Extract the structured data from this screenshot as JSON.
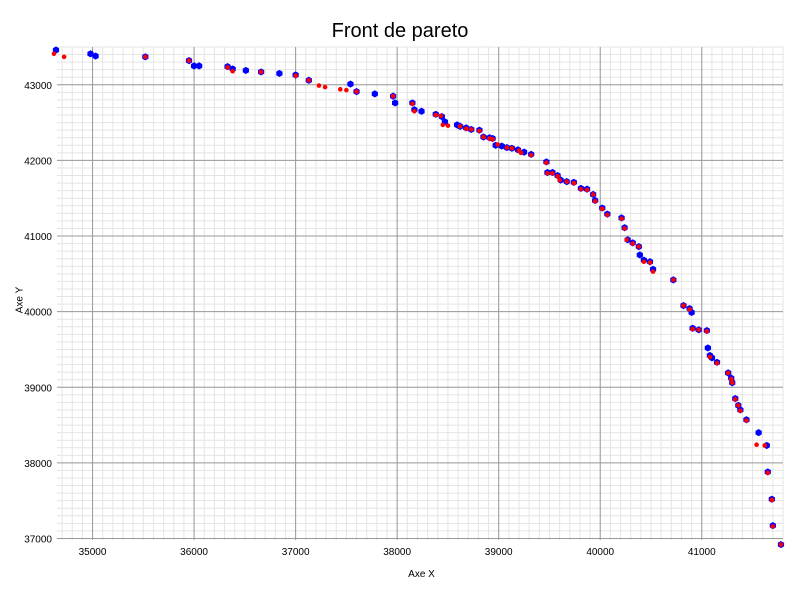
{
  "chart_data": {
    "type": "scatter",
    "title": "Front de pareto",
    "xlabel": "Axe X",
    "ylabel": "Axe Y",
    "xlim": [
      34650,
      41800
    ],
    "ylim": [
      36980,
      43500
    ],
    "x_ticks": [
      35000,
      36000,
      37000,
      38000,
      39000,
      40000,
      41000
    ],
    "y_ticks": [
      37000,
      38000,
      39000,
      40000,
      41000,
      42000,
      43000
    ],
    "grid": true,
    "series": [
      {
        "color": "#0000ff",
        "marker": "hexagon",
        "points": [
          [
            34640,
            43460
          ],
          [
            34980,
            43410
          ],
          [
            35030,
            43380
          ],
          [
            35520,
            43370
          ],
          [
            35950,
            43320
          ],
          [
            36000,
            43250
          ],
          [
            36050,
            43250
          ],
          [
            36330,
            43240
          ],
          [
            36380,
            43210
          ],
          [
            36510,
            43190
          ],
          [
            36660,
            43170
          ],
          [
            36840,
            43150
          ],
          [
            37000,
            43130
          ],
          [
            37130,
            43060
          ],
          [
            37540,
            43010
          ],
          [
            37600,
            42910
          ],
          [
            37780,
            42880
          ],
          [
            37960,
            42850
          ],
          [
            37980,
            42760
          ],
          [
            38150,
            42760
          ],
          [
            38170,
            42670
          ],
          [
            38240,
            42650
          ],
          [
            38380,
            42610
          ],
          [
            38440,
            42580
          ],
          [
            38470,
            42510
          ],
          [
            38590,
            42470
          ],
          [
            38620,
            42450
          ],
          [
            38680,
            42430
          ],
          [
            38730,
            42410
          ],
          [
            38810,
            42400
          ],
          [
            38850,
            42310
          ],
          [
            38910,
            42300
          ],
          [
            38940,
            42290
          ],
          [
            38970,
            42200
          ],
          [
            39030,
            42190
          ],
          [
            39080,
            42170
          ],
          [
            39130,
            42160
          ],
          [
            39190,
            42140
          ],
          [
            39250,
            42110
          ],
          [
            39320,
            42080
          ],
          [
            39470,
            41980
          ],
          [
            39480,
            41840
          ],
          [
            39530,
            41840
          ],
          [
            39580,
            41800
          ],
          [
            39610,
            41740
          ],
          [
            39670,
            41720
          ],
          [
            39740,
            41710
          ],
          [
            39810,
            41630
          ],
          [
            39870,
            41620
          ],
          [
            39930,
            41550
          ],
          [
            39950,
            41470
          ],
          [
            40020,
            41370
          ],
          [
            40070,
            41290
          ],
          [
            40210,
            41240
          ],
          [
            40240,
            41110
          ],
          [
            40270,
            40950
          ],
          [
            40320,
            40910
          ],
          [
            40380,
            40860
          ],
          [
            40390,
            40750
          ],
          [
            40430,
            40680
          ],
          [
            40490,
            40660
          ],
          [
            40520,
            40560
          ],
          [
            40720,
            40420
          ],
          [
            40820,
            40080
          ],
          [
            40880,
            40040
          ],
          [
            40900,
            39990
          ],
          [
            40910,
            39780
          ],
          [
            40970,
            39760
          ],
          [
            41050,
            39750
          ],
          [
            41060,
            39520
          ],
          [
            41080,
            39420
          ],
          [
            41100,
            39390
          ],
          [
            41150,
            39330
          ],
          [
            41260,
            39190
          ],
          [
            41290,
            39120
          ],
          [
            41300,
            39060
          ],
          [
            41330,
            38850
          ],
          [
            41360,
            38760
          ],
          [
            41380,
            38700
          ],
          [
            41440,
            38570
          ],
          [
            41560,
            38400
          ],
          [
            41640,
            38230
          ],
          [
            41650,
            37880
          ],
          [
            41690,
            37520
          ],
          [
            41700,
            37170
          ],
          [
            41780,
            36920
          ]
        ]
      },
      {
        "color": "#ff0000",
        "marker": "dot",
        "points": [
          [
            34620,
            43410
          ],
          [
            34720,
            43370
          ],
          [
            35520,
            43370
          ],
          [
            35950,
            43320
          ],
          [
            36330,
            43230
          ],
          [
            36380,
            43180
          ],
          [
            36660,
            43170
          ],
          [
            37000,
            43120
          ],
          [
            37130,
            43060
          ],
          [
            37230,
            42990
          ],
          [
            37290,
            42970
          ],
          [
            37440,
            42940
          ],
          [
            37500,
            42930
          ],
          [
            37600,
            42910
          ],
          [
            37960,
            42850
          ],
          [
            38150,
            42750
          ],
          [
            38170,
            42650
          ],
          [
            38380,
            42600
          ],
          [
            38430,
            42590
          ],
          [
            38450,
            42470
          ],
          [
            38500,
            42460
          ],
          [
            38620,
            42450
          ],
          [
            38680,
            42420
          ],
          [
            38730,
            42410
          ],
          [
            38810,
            42390
          ],
          [
            38850,
            42310
          ],
          [
            38910,
            42290
          ],
          [
            38940,
            42280
          ],
          [
            38990,
            42210
          ],
          [
            39080,
            42170
          ],
          [
            39130,
            42160
          ],
          [
            39200,
            42130
          ],
          [
            39220,
            42100
          ],
          [
            39320,
            42070
          ],
          [
            39470,
            41970
          ],
          [
            39480,
            41830
          ],
          [
            39530,
            41830
          ],
          [
            39580,
            41790
          ],
          [
            39600,
            41740
          ],
          [
            39670,
            41720
          ],
          [
            39740,
            41700
          ],
          [
            39810,
            41620
          ],
          [
            39870,
            41610
          ],
          [
            39930,
            41550
          ],
          [
            39950,
            41460
          ],
          [
            40020,
            41360
          ],
          [
            40070,
            41280
          ],
          [
            40210,
            41230
          ],
          [
            40240,
            41100
          ],
          [
            40260,
            40950
          ],
          [
            40320,
            40900
          ],
          [
            40380,
            40860
          ],
          [
            40430,
            40660
          ],
          [
            40490,
            40650
          ],
          [
            40520,
            40530
          ],
          [
            40720,
            40420
          ],
          [
            40820,
            40080
          ],
          [
            40880,
            40030
          ],
          [
            40910,
            39770
          ],
          [
            40970,
            39760
          ],
          [
            41050,
            39740
          ],
          [
            41080,
            39400
          ],
          [
            41150,
            39320
          ],
          [
            41260,
            39190
          ],
          [
            41290,
            39110
          ],
          [
            41300,
            39060
          ],
          [
            41330,
            38840
          ],
          [
            41360,
            38760
          ],
          [
            41380,
            38690
          ],
          [
            41440,
            38560
          ],
          [
            41540,
            38240
          ],
          [
            41620,
            38230
          ],
          [
            41650,
            37870
          ],
          [
            41690,
            37510
          ],
          [
            41700,
            37160
          ],
          [
            41780,
            36920
          ]
        ]
      }
    ]
  }
}
